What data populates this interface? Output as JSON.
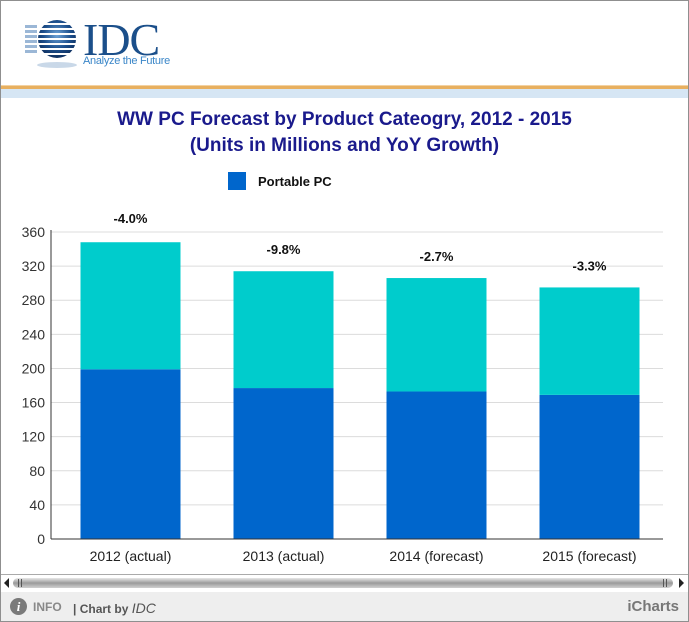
{
  "header": {
    "logo_text": "IDC",
    "logo_tagline": "Analyze the Future"
  },
  "colors": {
    "series_base": "#0066cc",
    "series_top": "#00cccc",
    "title": "#1a1a8c",
    "accent_orange": "#e8b060",
    "accent_lightblue": "#d6e6f4"
  },
  "chart_data": {
    "type": "bar",
    "stacked": true,
    "title": "WW PC Forecast by Product Cateogry, 2012 - 2015",
    "subtitle": "(Units in Millions and YoY Growth)",
    "xlabel": "",
    "ylabel": "",
    "categories": [
      "2012 (actual)",
      "2013 (actual)",
      "2014 (forecast)",
      "2015 (forecast)"
    ],
    "series": [
      {
        "name": "Portable PC",
        "color": "#0066cc",
        "values": [
          199,
          177,
          173,
          169
        ],
        "in_legend": true
      },
      {
        "name": "",
        "color": "#00cccc",
        "values": [
          149,
          137,
          133,
          126
        ],
        "in_legend": false
      }
    ],
    "totals": [
      348,
      314,
      306,
      295
    ],
    "annotations": [
      "-4.0%",
      "-9.8%",
      "-2.7%",
      "-3.3%"
    ],
    "ylim": [
      0,
      360
    ],
    "yticks": [
      0,
      40,
      80,
      120,
      160,
      200,
      240,
      280,
      320,
      360
    ],
    "grid": true,
    "legend_position": "top-center"
  },
  "footer": {
    "info_icon": "info-icon",
    "info_label": "INFO",
    "chart_by_prefix": "| Chart by ",
    "chart_by_brand": "IDC",
    "provider": "iCharts"
  }
}
